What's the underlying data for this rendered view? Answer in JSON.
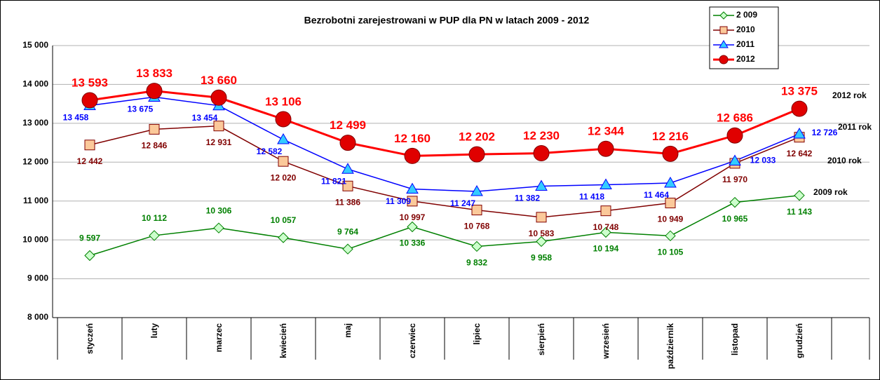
{
  "chart_data": {
    "type": "line",
    "title": "Bezrobotni zarejestrowani w PUP dla PN w latach 2009 - 2012",
    "categories": [
      "styczeń",
      "luty",
      "marzec",
      "kwiecień",
      "maj",
      "czerwiec",
      "lipiec",
      "sierpień",
      "wrzesień",
      "październik",
      "listopad",
      "grudzień"
    ],
    "series": [
      {
        "name": "2 009",
        "color": "#008000",
        "marker": "diamond",
        "marker_fill": "#ccffcc",
        "values": [
          9597,
          10112,
          10306,
          10057,
          9764,
          10336,
          9832,
          9958,
          10194,
          10105,
          10965,
          11143
        ],
        "value_labels": [
          "9 597",
          "10 112",
          "10 306",
          "10 057",
          "9 764",
          "10 336",
          "9 832",
          "9 958",
          "10 194",
          "10 105",
          "10 965",
          "11 143"
        ]
      },
      {
        "name": "2010",
        "color": "#800000",
        "marker": "square",
        "marker_fill": "#fbc99a",
        "values": [
          12442,
          12846,
          12931,
          12020,
          11386,
          10997,
          10768,
          10583,
          10748,
          10949,
          11970,
          12642
        ],
        "value_labels": [
          "12 442",
          "12 846",
          "12 931",
          "12 020",
          "11 386",
          "10 997",
          "10 768",
          "10 583",
          "10 748",
          "10 949",
          "11 970",
          "12 642"
        ]
      },
      {
        "name": "2011",
        "color": "#0000ff",
        "marker": "triangle",
        "marker_fill": "#33ccff",
        "values": [
          13458,
          13675,
          13454,
          12582,
          11821,
          11309,
          11247,
          11382,
          11418,
          11464,
          12033,
          12726
        ],
        "value_labels": [
          "13 458",
          "13 675",
          "13 454",
          "12 582",
          "11 821",
          "11 309",
          "11 247",
          "11 382",
          "11 418",
          "11 464",
          "12 033",
          "12 726"
        ]
      },
      {
        "name": "2012",
        "color": "#ff0000",
        "marker": "circle",
        "marker_fill": "#e00000",
        "values": [
          13593,
          13833,
          13660,
          13106,
          12499,
          12160,
          12202,
          12230,
          12344,
          12216,
          12686,
          13375
        ],
        "value_labels": [
          "13 593",
          "13 833",
          "13 660",
          "13 106",
          "12 499",
          "12 160",
          "12 202",
          "12 230",
          "12 344",
          "12 216",
          "12 686",
          "13 375"
        ]
      }
    ],
    "annotations": [
      "2012 rok",
      "2011 rok",
      "2010 rok",
      "2009 rok"
    ],
    "ylim": [
      8000,
      15000
    ],
    "yticks": [
      {
        "value": 8000,
        "label": "8 000"
      },
      {
        "value": 9000,
        "label": "9 000"
      },
      {
        "value": 10000,
        "label": "10 000"
      },
      {
        "value": 11000,
        "label": "11 000"
      },
      {
        "value": 12000,
        "label": "12 000"
      },
      {
        "value": 13000,
        "label": "13 000"
      },
      {
        "value": 14000,
        "label": "14 000"
      },
      {
        "value": 15000,
        "label": "15 000"
      }
    ],
    "grid": true,
    "legend": "top-right"
  }
}
